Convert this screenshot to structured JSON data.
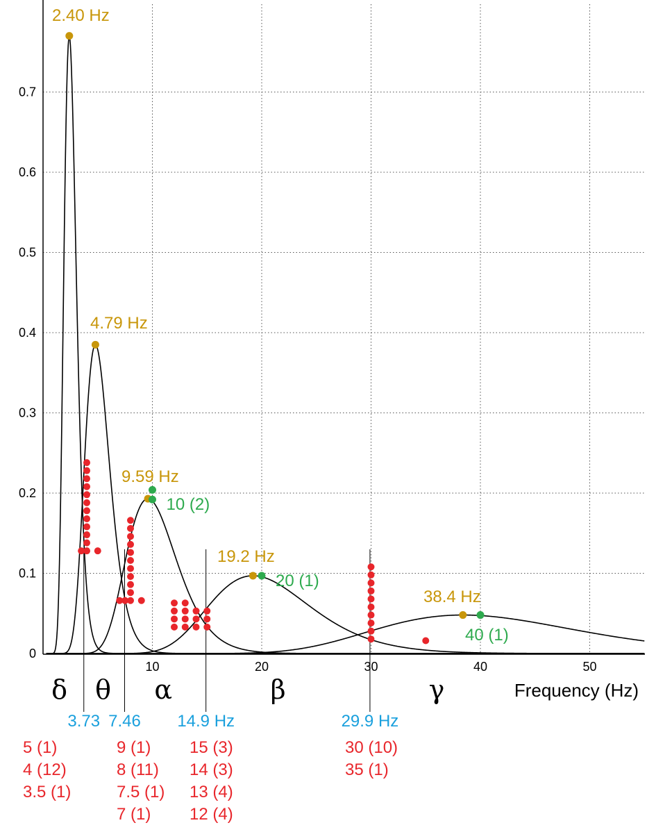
{
  "chart_data": {
    "type": "line",
    "xlabel": "Frequency (Hz)",
    "ylabel": "",
    "title": "",
    "xlim": [
      0,
      55
    ],
    "ylim": [
      0,
      0.78
    ],
    "x_ticks": [
      0,
      10,
      20,
      30,
      40,
      50
    ],
    "y_ticks": [
      0,
      0.1,
      0.2,
      0.3,
      0.4,
      0.5,
      0.6,
      0.7
    ],
    "grid": true,
    "curves": [
      {
        "peak_x": 2.4,
        "peak_y": 0.77
      },
      {
        "peak_x": 4.79,
        "peak_y": 0.385
      },
      {
        "peak_x": 9.59,
        "peak_y": 0.193
      },
      {
        "peak_x": 19.2,
        "peak_y": 0.097
      },
      {
        "peak_x": 38.4,
        "peak_y": 0.048
      }
    ],
    "peak_markers": [
      {
        "x": 2.4,
        "y": 0.77,
        "label": "2.40 Hz",
        "color": "#c8960a"
      },
      {
        "x": 4.79,
        "y": 0.385,
        "label": "4.79 Hz",
        "color": "#c8960a"
      },
      {
        "x": 9.59,
        "y": 0.193,
        "label": "9.59 Hz",
        "color": "#c8960a"
      },
      {
        "x": 19.2,
        "y": 0.097,
        "label": "19.2 Hz",
        "color": "#c8960a"
      },
      {
        "x": 38.4,
        "y": 0.048,
        "label": "38.4 Hz",
        "color": "#c8960a"
      }
    ],
    "green_points": [
      {
        "x": 10,
        "ys": [
          0.192,
          0.204
        ],
        "label": "10 (2)"
      },
      {
        "x": 20,
        "ys": [
          0.097
        ],
        "label": "20 (1)"
      },
      {
        "x": 40,
        "ys": [
          0.048
        ],
        "label": "40 (1)"
      }
    ],
    "red_points": [
      {
        "x": 3.5,
        "count": 1
      },
      {
        "x": 4,
        "count": 12
      },
      {
        "x": 5,
        "count": 1
      },
      {
        "x": 7,
        "count": 1
      },
      {
        "x": 7.5,
        "count": 1
      },
      {
        "x": 8,
        "count": 11
      },
      {
        "x": 9,
        "count": 1
      },
      {
        "x": 12,
        "count": 4
      },
      {
        "x": 13,
        "count": 4
      },
      {
        "x": 14,
        "count": 3
      },
      {
        "x": 15,
        "count": 3
      },
      {
        "x": 30,
        "count": 10
      },
      {
        "x": 35,
        "count": 1
      }
    ],
    "band_boundaries": [
      {
        "x": 3.73,
        "label": "3.73"
      },
      {
        "x": 7.46,
        "label": "7.46"
      },
      {
        "x": 14.9,
        "label": "14.9 Hz"
      },
      {
        "x": 29.9,
        "label": "29.9 Hz"
      }
    ],
    "bands": [
      {
        "x": 1.5,
        "symbol": "δ"
      },
      {
        "x": 5.5,
        "symbol": "θ"
      },
      {
        "x": 11.0,
        "symbol": "α"
      },
      {
        "x": 21.5,
        "symbol": "β"
      },
      {
        "x": 36.0,
        "symbol": "γ"
      }
    ],
    "count_lists": [
      {
        "x": 3.73,
        "items": [
          "5 (1)",
          "4 (12)",
          "3.5 (1)"
        ]
      },
      {
        "x": 7.46,
        "items": [
          "9 (1)",
          "8 (11)",
          "7.5 (1)",
          "7 (1)"
        ]
      },
      {
        "x": 14.9,
        "items": [
          "15 (3)",
          "14 (3)",
          "13 (4)",
          "12 (4)"
        ]
      },
      {
        "x": 29.9,
        "items": [
          "30 (10)",
          "35 (1)"
        ]
      }
    ],
    "colors": {
      "peak": "#c8960a",
      "green": "#2eaa4e",
      "red": "#e8262b",
      "boundary": "#1aa0dd",
      "curve": "#000000",
      "grid": "#555555"
    }
  }
}
